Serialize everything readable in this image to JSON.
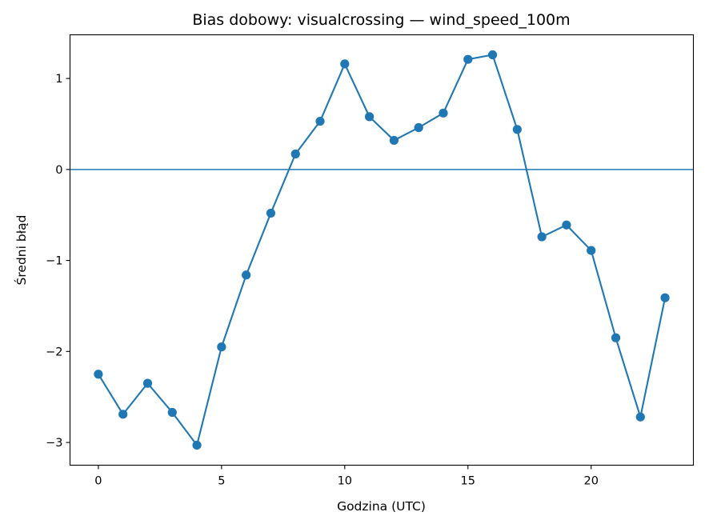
{
  "chart_data": {
    "type": "line",
    "title": "Bias dobowy: visualcrossing — wind_speed_100m",
    "xlabel": "Godzina (UTC)",
    "ylabel": "Średni błąd",
    "xlim": [
      -1.15,
      24.15
    ],
    "ylim": [
      -3.25,
      1.48
    ],
    "xticks": [
      0,
      5,
      10,
      15,
      20
    ],
    "yticks": [
      -3,
      -2,
      -1,
      0,
      1
    ],
    "ytick_labels": [
      "−3",
      "−2",
      "−1",
      "0",
      "1"
    ],
    "grid": false,
    "reference_line_y": 0,
    "series_color": "#1f77b4",
    "series": [
      {
        "marker": "circle",
        "x": [
          0,
          1,
          2,
          3,
          4,
          5,
          6,
          7,
          8,
          9,
          10,
          11,
          12,
          13,
          14,
          15,
          16,
          17,
          18,
          19,
          20,
          21,
          22,
          23
        ],
        "values": [
          -2.25,
          -2.69,
          -2.35,
          -2.67,
          -3.03,
          -1.95,
          -1.16,
          -0.48,
          0.17,
          0.53,
          1.16,
          0.58,
          0.32,
          0.46,
          0.62,
          1.21,
          1.26,
          0.44,
          -0.74,
          -0.61,
          -0.89,
          -1.85,
          -2.72,
          -1.41
        ]
      }
    ]
  }
}
